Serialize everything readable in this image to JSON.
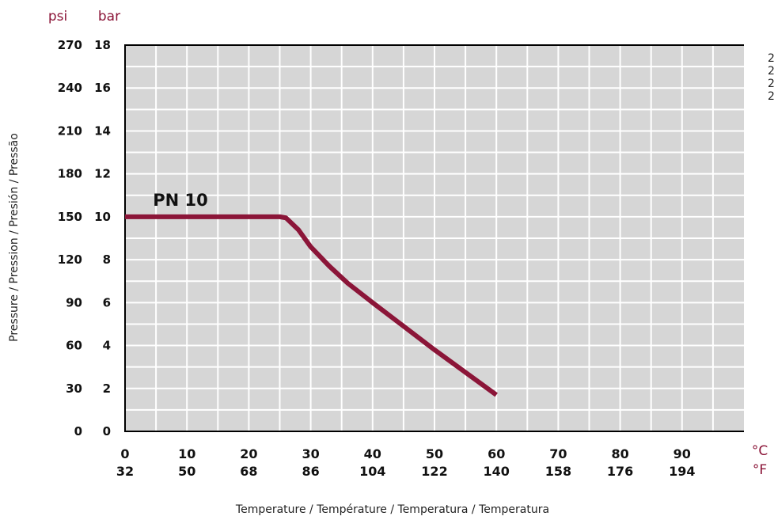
{
  "colors": {
    "plot_background": "#d6d6d6",
    "grid": "#ffffff",
    "curve": "#8b1538",
    "unit_labels": "#8b1538"
  },
  "side_note": [
    "2",
    "2",
    "2",
    "2"
  ],
  "chart_data": {
    "type": "line",
    "title": "",
    "xlabel": "Temperature / Température / Temperatura / Temperatura",
    "ylabel": "Pressure / Pression / Presión / Pressão",
    "x_unit_primary": "°C",
    "x_unit_secondary": "°F",
    "y_unit_primary": "bar",
    "y_unit_secondary": "psi",
    "xlim": [
      0,
      100
    ],
    "ylim": [
      0,
      18
    ],
    "x_ticks": [
      {
        "c": "0",
        "f": "32"
      },
      {
        "c": "10",
        "f": "50"
      },
      {
        "c": "20",
        "f": "68"
      },
      {
        "c": "30",
        "f": "86"
      },
      {
        "c": "40",
        "f": "104"
      },
      {
        "c": "50",
        "f": "122"
      },
      {
        "c": "60",
        "f": "140"
      },
      {
        "c": "70",
        "f": "158"
      },
      {
        "c": "80",
        "f": "176"
      },
      {
        "c": "90",
        "f": "194"
      }
    ],
    "y_ticks": [
      {
        "bar": "0",
        "psi": "0"
      },
      {
        "bar": "2",
        "psi": "30"
      },
      {
        "bar": "4",
        "psi": "60"
      },
      {
        "bar": "6",
        "psi": "90"
      },
      {
        "bar": "8",
        "psi": "120"
      },
      {
        "bar": "10",
        "psi": "150"
      },
      {
        "bar": "12",
        "psi": "180"
      },
      {
        "bar": "14",
        "psi": "210"
      },
      {
        "bar": "16",
        "psi": "240"
      },
      {
        "bar": "18",
        "psi": "270"
      }
    ],
    "grid": true,
    "series": [
      {
        "name": "PN 10",
        "x": [
          0,
          25,
          26,
          28,
          30,
          33,
          36,
          40,
          45,
          50,
          55,
          60
        ],
        "y": [
          10,
          10,
          9.95,
          9.4,
          8.6,
          7.7,
          6.9,
          6.0,
          4.9,
          3.8,
          2.75,
          1.7
        ]
      }
    ]
  }
}
